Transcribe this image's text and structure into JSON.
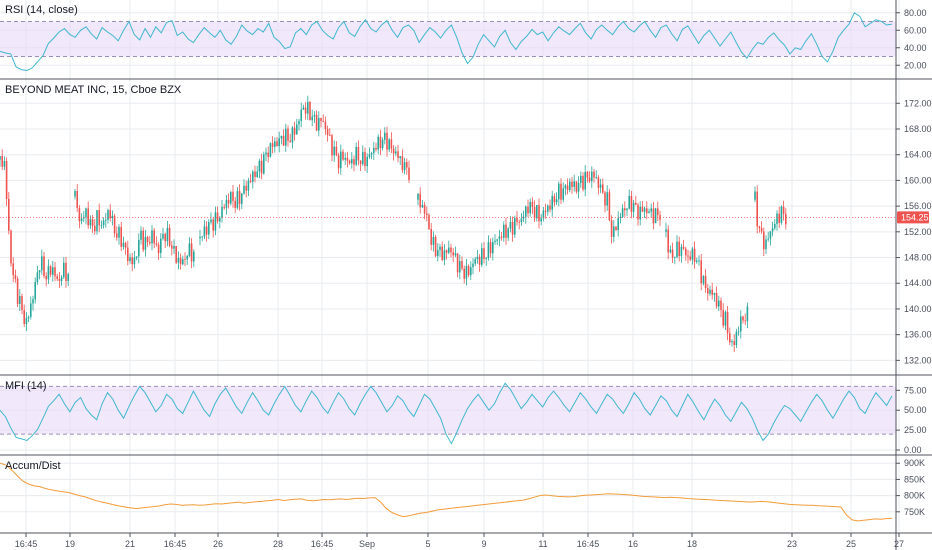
{
  "chart_data": [
    {
      "type": "line",
      "pane": "rsi",
      "title": "RSI (14, close)",
      "ylim": [
        10,
        90
      ],
      "y_ticks": [
        "80.00",
        "60.00",
        "40.00",
        "20.00"
      ],
      "y_tick_values": [
        80,
        60,
        40,
        20
      ],
      "band": [
        30,
        70
      ],
      "band_color": "#e8d5fa",
      "line_color": "#3fb8cf",
      "values": [
        36,
        34,
        33,
        18,
        15,
        14,
        17,
        24,
        31,
        45,
        51,
        58,
        62,
        55,
        52,
        60,
        64,
        56,
        50,
        63,
        58,
        54,
        48,
        60,
        70,
        55,
        49,
        62,
        52,
        64,
        57,
        69,
        71,
        54,
        58,
        50,
        46,
        55,
        63,
        57,
        52,
        60,
        49,
        44,
        53,
        66,
        59,
        55,
        62,
        58,
        68,
        52,
        47,
        39,
        41,
        57,
        62,
        55,
        66,
        70,
        60,
        54,
        50,
        63,
        70,
        57,
        53,
        64,
        72,
        62,
        58,
        66,
        71,
        60,
        52,
        63,
        66,
        60,
        46,
        55,
        63,
        58,
        51,
        60,
        66,
        52,
        34,
        22,
        29,
        44,
        55,
        48,
        41,
        53,
        60,
        46,
        38,
        47,
        53,
        61,
        55,
        58,
        48,
        57,
        64,
        59,
        55,
        62,
        68,
        57,
        50,
        61,
        66,
        60,
        55,
        64,
        70,
        62,
        58,
        65,
        70,
        60,
        52,
        63,
        66,
        56,
        48,
        61,
        65,
        55,
        45,
        54,
        60,
        51,
        42,
        50,
        58,
        46,
        35,
        28,
        38,
        46,
        44,
        52,
        57,
        49,
        43,
        33,
        40,
        38,
        48,
        56,
        44,
        30,
        24,
        36,
        52,
        60,
        67,
        80,
        76,
        64,
        68,
        72,
        70,
        66,
        67
      ]
    },
    {
      "type": "candlestick",
      "pane": "price",
      "title": "BEYOND MEAT INC, 15, Cboe BZX",
      "ylim": [
        130.5,
        175
      ],
      "y_ticks": [
        "172.00",
        "168.00",
        "164.00",
        "160.00",
        "156.00",
        "152.00",
        "148.00",
        "144.00",
        "140.00",
        "136.00",
        "132.00"
      ],
      "y_tick_values": [
        172,
        168,
        164,
        160,
        156,
        152,
        148,
        144,
        140,
        136,
        132
      ],
      "last_price": 154.25,
      "last_price_label": "154.25",
      "up_color": "#26a69a",
      "down_color": "#ef5350",
      "segments": [
        [
          [
            163.2,
            0
          ],
          [
            162.5,
            5
          ],
          [
            153,
            8
          ],
          [
            146,
            12
          ],
          [
            142,
            18
          ],
          [
            137.5,
            26
          ],
          [
            142,
            33
          ],
          [
            147.5,
            40
          ],
          [
            145,
            46
          ],
          [
            146.5,
            52
          ],
          [
            144,
            58
          ],
          [
            146,
            63
          ],
          [
            145.5,
            67
          ],
          [
            144.5,
            70
          ]
        ],
        [
          [
            157.5,
            75
          ],
          [
            153.5,
            80
          ],
          [
            155,
            86
          ],
          [
            152.5,
            92
          ],
          [
            154,
            97
          ],
          [
            153,
            103
          ],
          [
            155.5,
            109
          ],
          [
            152,
            115
          ],
          [
            151,
            121
          ],
          [
            148,
            128
          ],
          [
            147,
            134
          ],
          [
            151.5,
            140
          ],
          [
            150,
            146
          ],
          [
            151.5,
            152
          ],
          [
            149,
            158
          ],
          [
            152,
            164
          ],
          [
            150.5,
            170
          ],
          [
            148,
            176
          ],
          [
            147,
            182
          ],
          [
            149,
            188
          ],
          [
            148.5,
            194
          ]
        ],
        [
          [
            151,
            200
          ],
          [
            152.5,
            206
          ],
          [
            153.5,
            212
          ],
          [
            154,
            218
          ],
          [
            156,
            224
          ],
          [
            157.5,
            230
          ],
          [
            156.5,
            236
          ],
          [
            158,
            242
          ],
          [
            159.5,
            248
          ],
          [
            161,
            254
          ],
          [
            162,
            260
          ],
          [
            164,
            266
          ],
          [
            165.5,
            272
          ],
          [
            166,
            278
          ],
          [
            166.8,
            284
          ],
          [
            166.5,
            290
          ],
          [
            168.5,
            297
          ],
          [
            171.5,
            303
          ],
          [
            170.5,
            310
          ],
          [
            168.8,
            316
          ],
          [
            169.5,
            322
          ],
          [
            168,
            326
          ],
          [
            166,
            330
          ],
          [
            164.5,
            334
          ],
          [
            163,
            338
          ],
          [
            163.8,
            344
          ],
          [
            162.5,
            350
          ],
          [
            164,
            356
          ],
          [
            163,
            362
          ],
          [
            163.5,
            368
          ],
          [
            165,
            374
          ],
          [
            166,
            380
          ],
          [
            166.5,
            386
          ],
          [
            165,
            391
          ],
          [
            164.2,
            396
          ],
          [
            163.2,
            400
          ],
          [
            162,
            405
          ],
          [
            161.2,
            410
          ]
        ],
        [
          [
            157,
            418
          ],
          [
            155.5,
            424
          ],
          [
            153.5,
            428
          ],
          [
            150,
            432
          ],
          [
            149,
            438
          ],
          [
            148.5,
            444
          ],
          [
            149.5,
            450
          ],
          [
            147.5,
            456
          ],
          [
            146,
            462
          ],
          [
            145.5,
            468
          ],
          [
            147.5,
            474
          ],
          [
            148,
            480
          ],
          [
            148.5,
            486
          ],
          [
            150,
            492
          ],
          [
            151,
            498
          ],
          [
            152,
            504
          ],
          [
            152.5,
            510
          ],
          [
            153.5,
            516
          ],
          [
            154,
            522
          ],
          [
            156,
            528
          ],
          [
            155.5,
            534
          ],
          [
            154,
            540
          ],
          [
            155.5,
            546
          ],
          [
            156.5,
            552
          ],
          [
            158,
            558
          ],
          [
            158.5,
            564
          ],
          [
            159.5,
            570
          ],
          [
            159,
            576
          ],
          [
            160,
            582
          ],
          [
            160.5,
            588
          ],
          [
            160.8,
            594
          ],
          [
            159,
            600
          ],
          [
            157.5,
            604
          ],
          [
            156.5,
            608
          ],
          [
            151,
            612
          ],
          [
            153,
            616
          ],
          [
            154.5,
            620
          ],
          [
            156,
            626
          ],
          [
            156.5,
            632
          ],
          [
            155,
            638
          ],
          [
            155.5,
            644
          ],
          [
            155,
            650
          ],
          [
            154.5,
            656
          ],
          [
            155,
            662
          ]
        ],
        [
          [
            152,
            666
          ],
          [
            148,
            670
          ],
          [
            149,
            676
          ],
          [
            149.5,
            682
          ],
          [
            148,
            688
          ],
          [
            148.5,
            694
          ],
          [
            147,
            698
          ],
          [
            145,
            702
          ],
          [
            143,
            706
          ],
          [
            142.5,
            712
          ],
          [
            141,
            718
          ],
          [
            139,
            722
          ],
          [
            138,
            726
          ],
          [
            135,
            730
          ],
          [
            134,
            733
          ],
          [
            136,
            736
          ],
          [
            138.5,
            742
          ],
          [
            139,
            748
          ]
        ],
        [
          [
            157,
            755
          ],
          [
            153,
            758
          ],
          [
            151,
            762
          ],
          [
            150,
            766
          ],
          [
            152,
            770
          ],
          [
            153,
            774
          ],
          [
            154.5,
            778
          ],
          [
            155,
            782
          ],
          [
            154.25,
            786
          ]
        ]
      ]
    },
    {
      "type": "line",
      "pane": "mfi",
      "title": "MFI (14)",
      "ylim": [
        0,
        88
      ],
      "y_ticks": [
        "75.00",
        "50.00",
        "25.00",
        "0.00"
      ],
      "y_tick_values": [
        75,
        50,
        25,
        0
      ],
      "band": [
        20,
        80
      ],
      "band_color": "#e8d5fa",
      "line_color": "#3fb8cf",
      "values": [
        50,
        42,
        28,
        16,
        14,
        12,
        18,
        26,
        40,
        55,
        62,
        70,
        58,
        48,
        60,
        66,
        52,
        44,
        38,
        58,
        72,
        64,
        50,
        40,
        55,
        68,
        80,
        72,
        60,
        48,
        56,
        70,
        64,
        52,
        46,
        60,
        74,
        62,
        50,
        42,
        58,
        70,
        78,
        66,
        54,
        46,
        60,
        72,
        62,
        50,
        44,
        58,
        70,
        80,
        68,
        56,
        48,
        62,
        74,
        66,
        54,
        46,
        60,
        72,
        64,
        52,
        44,
        58,
        70,
        80,
        72,
        60,
        48,
        56,
        68,
        62,
        50,
        42,
        56,
        70,
        64,
        52,
        40,
        20,
        8,
        22,
        38,
        52,
        62,
        70,
        60,
        50,
        58,
        72,
        84,
        76,
        64,
        52,
        60,
        70,
        62,
        54,
        66,
        74,
        66,
        56,
        48,
        60,
        72,
        64,
        54,
        46,
        58,
        70,
        64,
        54,
        46,
        58,
        72,
        64,
        52,
        44,
        56,
        68,
        62,
        50,
        42,
        56,
        70,
        60,
        48,
        38,
        52,
        64,
        56,
        44,
        36,
        48,
        60,
        52,
        40,
        24,
        12,
        20,
        34,
        46,
        56,
        52,
        44,
        36,
        48,
        60,
        70,
        62,
        50,
        40,
        52,
        64,
        74,
        66,
        52,
        46,
        60,
        72,
        64,
        56,
        68
      ]
    },
    {
      "type": "line",
      "pane": "accum",
      "title": "Accum/Dist",
      "ylim": [
        700000,
        910000
      ],
      "y_ticks": [
        "900K",
        "850K",
        "800K",
        "750K"
      ],
      "y_tick_values": [
        900000,
        850000,
        800000,
        750000
      ],
      "line_color": "#f39c3b",
      "values": [
        900000,
        895000,
        880000,
        862000,
        845000,
        836000,
        830000,
        828000,
        822000,
        818000,
        815000,
        812000,
        810000,
        805000,
        800000,
        796000,
        790000,
        784000,
        780000,
        776000,
        772000,
        768000,
        765000,
        762000,
        760000,
        762000,
        764000,
        766000,
        768000,
        772000,
        774000,
        773000,
        770000,
        771000,
        772000,
        770000,
        771000,
        773000,
        775000,
        774000,
        776000,
        778000,
        780000,
        777000,
        779000,
        781000,
        782000,
        784000,
        786000,
        788000,
        785000,
        787000,
        789000,
        790000,
        786000,
        784000,
        786000,
        788000,
        787000,
        789000,
        790000,
        788000,
        790000,
        792000,
        791000,
        793000,
        794000,
        780000,
        760000,
        748000,
        740000,
        735000,
        738000,
        742000,
        746000,
        748000,
        752000,
        756000,
        758000,
        760000,
        762000,
        764000,
        766000,
        768000,
        770000,
        772000,
        774000,
        776000,
        778000,
        780000,
        782000,
        784000,
        786000,
        790000,
        795000,
        800000,
        802000,
        800000,
        798000,
        797000,
        796000,
        797000,
        799000,
        801000,
        802000,
        803000,
        804000,
        806000,
        805000,
        804000,
        803000,
        802000,
        800000,
        798000,
        797000,
        796000,
        795000,
        794000,
        795000,
        794000,
        793000,
        791000,
        790000,
        789000,
        788000,
        787000,
        786000,
        785000,
        784000,
        783000,
        782000,
        781000,
        780000,
        781000,
        782000,
        781000,
        779000,
        777000,
        775000,
        773000,
        772000,
        771000,
        770000,
        770000,
        769000,
        768000,
        767000,
        766000,
        765000,
        740000,
        725000,
        722000,
        724000,
        726000,
        728000,
        727000,
        729000,
        730000
      ]
    }
  ],
  "time_axis": {
    "labels": [
      "16:45",
      "19",
      "21",
      "16:45",
      "26",
      "28",
      "16:45",
      "Sep",
      "5",
      "9",
      "11",
      "16:45",
      "16",
      "18",
      "23",
      "25",
      "27"
    ],
    "positions": [
      26,
      70,
      130,
      175,
      218,
      278,
      322,
      367,
      428,
      484,
      543,
      588,
      633,
      692,
      792,
      851,
      899
    ]
  },
  "colors": {
    "grid": "#e8ebef",
    "pane_border": "#50535e",
    "axis_text": "#4a4f5a",
    "price_line": "#ef5350",
    "tag_bg": "#ef5350"
  }
}
